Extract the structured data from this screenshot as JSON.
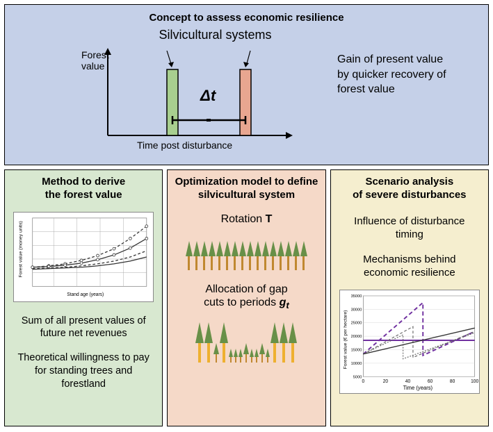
{
  "top": {
    "title": "Concept to assess economic resilience",
    "subtitle": "Silvicultural systems",
    "ylabel": "Forest\nvalue",
    "xlabel": "Time post disturbance",
    "delta": "Δt",
    "side_text": "Gain of present value by quicker recovery of forest value",
    "bar1_color": "#a8cf8f",
    "bar2_color": "#e8a690",
    "bg": "#c5d0e8"
  },
  "col1": {
    "title": "Method to derive the forest value",
    "bg": "#d8e8d0",
    "chart": {
      "ylabel": "Forest value (money units)",
      "xlabel": "Stand age (years)",
      "series": [
        {
          "dash": "4,3",
          "marker": true,
          "ys": [
            28,
            30,
            33,
            38,
            45,
            55,
            70,
            88
          ]
        },
        {
          "dash": "0",
          "marker": true,
          "ys": [
            28,
            29,
            31,
            34,
            39,
            46,
            56,
            70
          ]
        },
        {
          "dash": "4,3",
          "marker": false,
          "ys": [
            26,
            27,
            28,
            30,
            33,
            37,
            43,
            52
          ]
        },
        {
          "dash": "0",
          "marker": false,
          "ys": [
            25,
            26,
            27,
            28,
            30,
            33,
            37,
            43
          ]
        }
      ],
      "line_color": "#333333",
      "xmax": 100,
      "ymax": 100
    },
    "text1": "Sum of all present values of future net revenues",
    "text2": "Theoretical willingness to pay for standing trees and forestland"
  },
  "col2": {
    "title": "Optimization model to define silvicultural system",
    "bg": "#f5d9c8",
    "rotation_label": "Rotation",
    "rotation_var": "T",
    "gap_label": "Allocation of gap cuts to periods",
    "gap_var": "gₜ"
  },
  "col3": {
    "title": "Scenario analysis of severe disturbances",
    "bg": "#f5eecf",
    "text1": "Influence of disturbance timing",
    "text2": "Mechanisms behind economic resilience",
    "chart": {
      "ylabel": "Forest value (€ per hectare)",
      "xlabel": "Time (years)",
      "yticks": [
        5000,
        10000,
        15000,
        20000,
        25000,
        30000,
        35000
      ],
      "xticks": [
        0,
        20,
        40,
        60,
        80,
        100
      ],
      "purple": "#7030a0",
      "dash_color": "#666666",
      "solid_color": "#333333"
    }
  }
}
